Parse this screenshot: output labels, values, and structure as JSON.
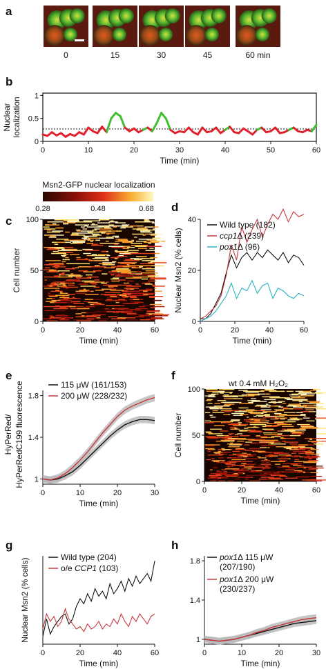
{
  "panels": {
    "a": {
      "label": "a",
      "time_labels": [
        "0",
        "15",
        "30",
        "45",
        "60 min"
      ]
    },
    "b": {
      "label": "b"
    },
    "c": {
      "label": "c",
      "colorbar_title": "Msn2-GFP nuclear localization",
      "colorbar_ticks": [
        "0.28",
        "0.48",
        "0.68"
      ]
    },
    "d": {
      "label": "d"
    },
    "e": {
      "label": "e"
    },
    "f": {
      "label": "f",
      "title": "wt 0.4 mM H₂O₂"
    },
    "g": {
      "label": "g"
    },
    "h": {
      "label": "h"
    }
  },
  "colors": {
    "green": "#3fbf2f",
    "red": "#e0202a",
    "dark_red": "#c8383e",
    "black": "#111111",
    "teal": "#2ab0c4",
    "gray_band": "#b8b8b8"
  },
  "chart_data": [
    {
      "id": "b",
      "type": "line",
      "xlabel": "Time (min)",
      "ylabel": "Nuclear localization",
      "xlim": [
        0,
        60
      ],
      "ylim": [
        0,
        1.05
      ],
      "xticks": [
        0,
        10,
        20,
        30,
        40,
        50,
        60
      ],
      "yticks": [
        0,
        0.5,
        1
      ],
      "threshold": 0.27,
      "x": [
        0,
        1,
        2,
        3,
        4,
        5,
        6,
        7,
        8,
        9,
        10,
        11,
        12,
        13,
        14,
        15,
        16,
        17,
        18,
        19,
        20,
        21,
        22,
        23,
        24,
        25,
        26,
        27,
        28,
        29,
        30,
        31,
        32,
        33,
        34,
        35,
        36,
        37,
        38,
        39,
        40,
        41,
        42,
        43,
        44,
        45,
        46,
        47,
        48,
        49,
        50,
        51,
        52,
        53,
        54,
        55,
        56,
        57,
        58,
        59,
        60
      ],
      "y": [
        0.15,
        0.12,
        0.2,
        0.13,
        0.18,
        0.1,
        0.16,
        0.12,
        0.2,
        0.15,
        0.3,
        0.22,
        0.18,
        0.32,
        0.2,
        0.5,
        0.62,
        0.55,
        0.3,
        0.22,
        0.28,
        0.2,
        0.25,
        0.3,
        0.22,
        0.4,
        0.62,
        0.5,
        0.25,
        0.18,
        0.22,
        0.2,
        0.3,
        0.2,
        0.15,
        0.3,
        0.2,
        0.22,
        0.3,
        0.18,
        0.25,
        0.32,
        0.2,
        0.18,
        0.28,
        0.22,
        0.15,
        0.25,
        0.3,
        0.2,
        0.22,
        0.3,
        0.18,
        0.2,
        0.25,
        0.3,
        0.22,
        0.2,
        0.25,
        0.22,
        0.36
      ]
    },
    {
      "id": "c",
      "type": "heatmap",
      "xlabel": "Time (min)",
      "ylabel": "Cell number",
      "xlim": [
        0,
        60
      ],
      "ylim": [
        0,
        100
      ],
      "xticks": [
        0,
        20,
        40,
        60
      ],
      "yticks": [
        0,
        50,
        100
      ],
      "clim": [
        0.28,
        0.68
      ]
    },
    {
      "id": "d",
      "type": "line",
      "xlabel": "Time (min)",
      "ylabel": "Nuclear Msn2 (% cells)",
      "xlim": [
        0,
        60
      ],
      "ylim": [
        0,
        40
      ],
      "xticks": [
        0,
        20,
        40,
        60
      ],
      "yticks": [
        0,
        20,
        40
      ],
      "x": [
        0,
        3,
        6,
        9,
        12,
        15,
        18,
        21,
        24,
        27,
        30,
        33,
        36,
        39,
        42,
        45,
        48,
        51,
        54,
        57,
        60
      ],
      "series": [
        {
          "name_italic": "",
          "name_rest": "Wild type (182)",
          "color": "black",
          "values": [
            1,
            1,
            3,
            7,
            11,
            19,
            26,
            21,
            25,
            27,
            24,
            27,
            25,
            28,
            26,
            24,
            27,
            23,
            26,
            25,
            22
          ]
        },
        {
          "name_italic": "ccp1",
          "name_rest": "Δ (239)",
          "color": "dark_red",
          "values": [
            1,
            2,
            4,
            6,
            10,
            18,
            30,
            24,
            37,
            31,
            36,
            40,
            33,
            38,
            42,
            40,
            44,
            39,
            43,
            41,
            42
          ]
        },
        {
          "name_italic": "pox1",
          "name_rest": "Δ (96)",
          "color": "teal",
          "values": [
            0,
            1,
            2,
            4,
            7,
            10,
            15,
            9,
            13,
            12,
            16,
            11,
            14,
            15,
            9,
            13,
            12,
            10,
            9,
            11,
            10
          ]
        }
      ]
    },
    {
      "id": "e",
      "type": "line",
      "xlabel": "Time (min)",
      "ylabel_line1": "HyPerRed/",
      "ylabel_line2": "HyPerRedC199 fluorescence",
      "xlim": [
        0,
        30
      ],
      "ylim": [
        0.95,
        1.85
      ],
      "xticks": [
        0,
        10,
        20,
        30
      ],
      "yticks": [
        1,
        1.4,
        1.8
      ],
      "x": [
        0,
        2,
        4,
        6,
        8,
        10,
        12,
        14,
        16,
        18,
        20,
        22,
        24,
        26,
        28,
        30
      ],
      "series": [
        {
          "name": "115 μW (161/153)",
          "color": "black",
          "values": [
            1.0,
            0.99,
            1.0,
            1.03,
            1.07,
            1.13,
            1.2,
            1.27,
            1.34,
            1.41,
            1.47,
            1.52,
            1.55,
            1.57,
            1.57,
            1.56
          ]
        },
        {
          "name": "200 μW (228/232)",
          "color": "dark_red",
          "values": [
            1.0,
            0.99,
            1.01,
            1.05,
            1.11,
            1.18,
            1.26,
            1.35,
            1.44,
            1.52,
            1.6,
            1.66,
            1.7,
            1.73,
            1.76,
            1.78
          ]
        }
      ],
      "band_halfwidth": 0.035
    },
    {
      "id": "f",
      "type": "heatmap",
      "xlabel": "Time (min)",
      "ylabel": "Cell number",
      "xlim": [
        0,
        60
      ],
      "ylim": [
        0,
        100
      ],
      "xticks": [
        0,
        20,
        40,
        60
      ],
      "yticks": [
        0,
        50,
        100
      ]
    },
    {
      "id": "g",
      "type": "line",
      "xlabel": "Time (min)",
      "ylabel": "Nuclear Msn2 (% cells)",
      "xlim": [
        0,
        60
      ],
      "ylim": [
        0,
        35
      ],
      "xticks": [
        0,
        20,
        40,
        60
      ],
      "yticks": [],
      "x": [
        0,
        2,
        4,
        6,
        8,
        10,
        12,
        14,
        16,
        18,
        20,
        22,
        24,
        26,
        28,
        30,
        32,
        34,
        36,
        38,
        40,
        42,
        44,
        46,
        48,
        50,
        52,
        54,
        56,
        58,
        60
      ],
      "series": [
        {
          "name_italic": "",
          "name_rest": "Wild type (204)",
          "color": "black",
          "values": [
            3,
            10,
            4,
            7,
            9,
            11,
            12,
            8,
            10,
            15,
            18,
            16,
            20,
            17,
            22,
            19,
            21,
            18,
            24,
            20,
            22,
            25,
            21,
            26,
            23,
            27,
            24,
            26,
            28,
            25,
            33
          ]
        },
        {
          "name_prefix": "o/e ",
          "name_italic": "CCP1",
          "name_rest": " (103)",
          "color": "dark_red",
          "values": [
            6,
            12,
            9,
            11,
            7,
            9,
            14,
            10,
            8,
            6,
            7,
            5,
            8,
            6,
            7,
            9,
            6,
            8,
            7,
            10,
            8,
            12,
            9,
            7,
            11,
            9,
            12,
            10,
            8,
            11,
            12
          ]
        }
      ]
    },
    {
      "id": "h",
      "type": "line",
      "xlabel": "Time (min)",
      "ylabel": "",
      "xlim": [
        0,
        30
      ],
      "ylim": [
        0.95,
        1.85
      ],
      "xticks": [
        0,
        10,
        20,
        30
      ],
      "yticks": [
        1,
        1.4,
        1.8
      ],
      "x": [
        0,
        2,
        4,
        6,
        8,
        10,
        12,
        14,
        16,
        18,
        20,
        22,
        24,
        26,
        28,
        30
      ],
      "series": [
        {
          "name_italic": "pox1",
          "name_rest": "Δ 115 μW",
          "name_line2": "(207/190)",
          "color": "black",
          "values": [
            1.0,
            0.99,
            0.98,
            0.99,
            1.0,
            1.02,
            1.04,
            1.06,
            1.08,
            1.1,
            1.12,
            1.14,
            1.16,
            1.17,
            1.18,
            1.19
          ]
        },
        {
          "name_italic": "pox1",
          "name_rest": "Δ 200 μW",
          "name_line2": "(230/237)",
          "color": "dark_red",
          "values": [
            1.0,
            0.99,
            0.98,
            0.99,
            1.0,
            1.02,
            1.04,
            1.07,
            1.09,
            1.12,
            1.14,
            1.16,
            1.18,
            1.2,
            1.21,
            1.22
          ]
        }
      ],
      "band_halfwidth": 0.035
    }
  ]
}
